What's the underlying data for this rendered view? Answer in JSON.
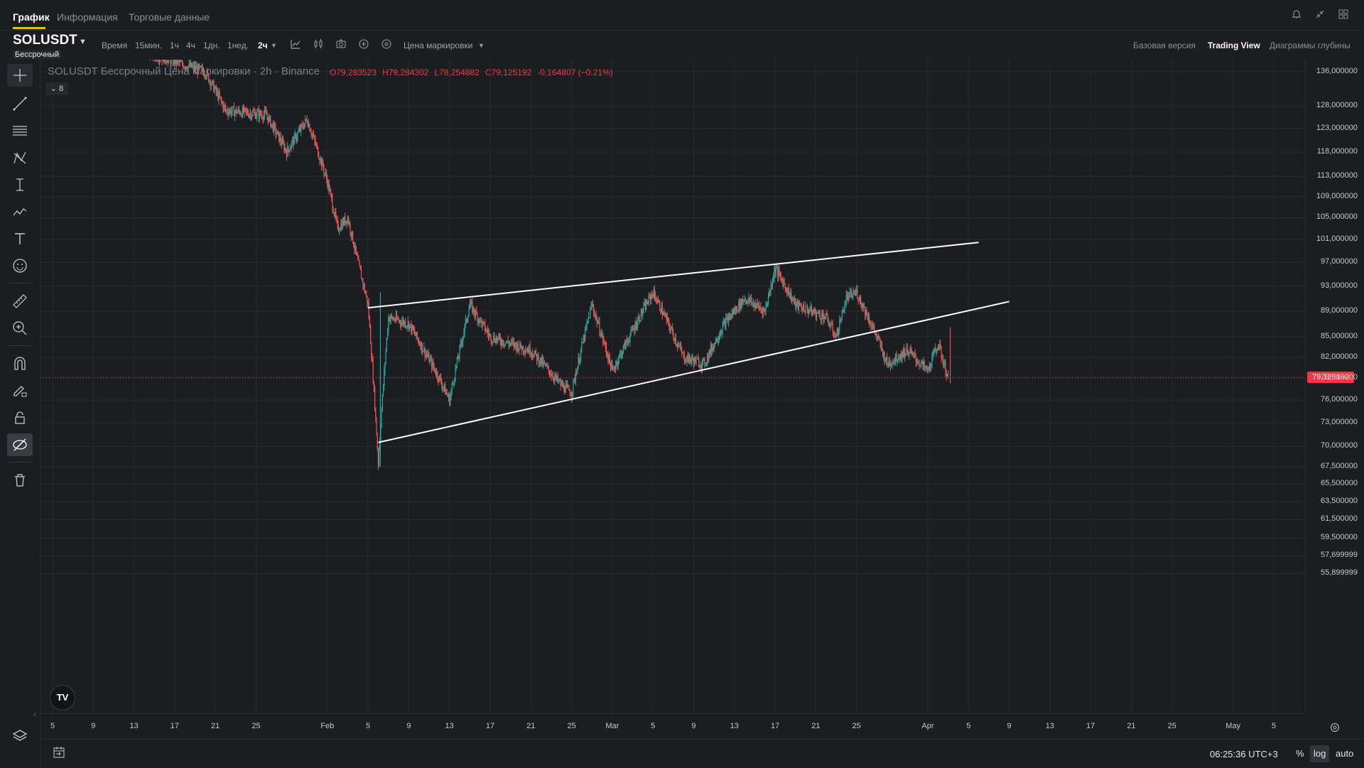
{
  "tabs": [
    {
      "label": "График",
      "active": true
    },
    {
      "label": "Информация",
      "active": false
    },
    {
      "label": "Торговые данные",
      "active": false
    }
  ],
  "top_right_icons": [
    "bell-icon",
    "shrink-icon",
    "layout-icon"
  ],
  "symbol": {
    "name": "SOLUSDT",
    "badge": "Бессрочный"
  },
  "intervals": [
    {
      "label": "Время",
      "active": false
    },
    {
      "label": "15мин.",
      "active": false
    },
    {
      "label": "1ч",
      "active": false
    },
    {
      "label": "4ч",
      "active": false
    },
    {
      "label": "1дн.",
      "active": false
    },
    {
      "label": "1нед.",
      "active": false
    },
    {
      "label": "2ч",
      "active": true
    }
  ],
  "toolbar_icons": [
    "indicators-icon",
    "candle-type-icon",
    "camera-icon",
    "plus-circle-icon",
    "settings-circle-icon"
  ],
  "price_source": "Цена маркировки",
  "views": [
    {
      "label": "Базовая версия",
      "active": false
    },
    {
      "label": "Trading View",
      "active": true
    },
    {
      "label": "Диаграммы глубины",
      "active": false
    }
  ],
  "left_tools": [
    "crosshair-icon",
    "trend-line-icon",
    "parallel-lines-icon",
    "pattern-icon",
    "measure-icon",
    "brush-icon",
    "text-icon",
    "emoji-icon",
    "ruler-icon",
    "zoom-in-icon",
    "magnet-icon",
    "lock-pencil-icon",
    "lock-icon",
    "hide-drawings-icon",
    "trash-icon",
    "layers-icon"
  ],
  "legend": {
    "title": "SOLUSDT Бессрочный Цена маркировки · 2h · Binance",
    "open": "O79,283523",
    "high": "H79,284302",
    "low": "L78,254882",
    "close": "C79,125192",
    "change": "-0,164807 (−0.21%)",
    "indicators_count": "8"
  },
  "price_axis": {
    "labels": [
      "136,000000",
      "128,000000",
      "123,000000",
      "118,000000",
      "113,000000",
      "109,000000",
      "105,000000",
      "101,000000",
      "97,000000",
      "93,000000",
      "89,000000",
      "85,000000",
      "82,000000",
      "79,000000",
      "76,000000",
      "73,000000",
      "70,000000",
      "67,500000",
      "65,500000",
      "63,500000",
      "61,500000",
      "59,500000",
      "57,699999",
      "55,899999"
    ],
    "current": "79,125192"
  },
  "time_axis": {
    "labels": [
      "5",
      "9",
      "13",
      "17",
      "21",
      "25",
      "Feb",
      "5",
      "9",
      "13",
      "17",
      "21",
      "25",
      "Mar",
      "5",
      "9",
      "13",
      "17",
      "21",
      "25",
      "Apr",
      "5",
      "9",
      "13",
      "17",
      "21",
      "25",
      "May",
      "5"
    ]
  },
  "bottom": {
    "clock": "06:25:36 UTC+3",
    "percent": "%",
    "log": "log",
    "auto": "auto"
  },
  "colors": {
    "up": "#26a69a",
    "down": "#ef5350",
    "current_price": "#f23645",
    "accent": "#f0b90b"
  },
  "chart_data": {
    "type": "candlestick",
    "symbol": "SOLUSDT",
    "interval": "2h",
    "scale": "log",
    "y_range": [
      55.9,
      140
    ],
    "series_anchors": [
      {
        "x": "Jan 3",
        "price": 150
      },
      {
        "x": "Jan 20",
        "price": 136
      },
      {
        "x": "Jan 22",
        "price": 127
      },
      {
        "x": "Jan 26",
        "price": 126
      },
      {
        "x": "Jan 28",
        "price": 118
      },
      {
        "x": "Jan 30",
        "price": 125
      },
      {
        "x": "Feb 1",
        "price": 112
      },
      {
        "x": "Feb 2",
        "price": 103
      },
      {
        "x": "Feb 3",
        "price": 105
      },
      {
        "x": "Feb 4",
        "price": 97
      },
      {
        "x": "Feb 5",
        "price": 90
      },
      {
        "x": "Feb 6",
        "price": 68
      },
      {
        "x": "Feb 7",
        "price": 88
      },
      {
        "x": "Feb 9",
        "price": 87
      },
      {
        "x": "Feb 12",
        "price": 79
      },
      {
        "x": "Feb 13",
        "price": 76
      },
      {
        "x": "Feb 15",
        "price": 90
      },
      {
        "x": "Feb 17",
        "price": 85
      },
      {
        "x": "Feb 21",
        "price": 83
      },
      {
        "x": "Feb 24",
        "price": 78
      },
      {
        "x": "Feb 25",
        "price": 77
      },
      {
        "x": "Feb 27",
        "price": 90
      },
      {
        "x": "Mar 1",
        "price": 80
      },
      {
        "x": "Mar 3",
        "price": 86
      },
      {
        "x": "Mar 5",
        "price": 92
      },
      {
        "x": "Mar 8",
        "price": 82
      },
      {
        "x": "Mar 10",
        "price": 81
      },
      {
        "x": "Mar 12",
        "price": 87
      },
      {
        "x": "Mar 14",
        "price": 91
      },
      {
        "x": "Mar 16",
        "price": 89
      },
      {
        "x": "Mar 17",
        "price": 96
      },
      {
        "x": "Mar 19",
        "price": 90
      },
      {
        "x": "Mar 22",
        "price": 88
      },
      {
        "x": "Mar 23",
        "price": 85
      },
      {
        "x": "Mar 24",
        "price": 91
      },
      {
        "x": "Mar 25",
        "price": 92
      },
      {
        "x": "Mar 27",
        "price": 85
      },
      {
        "x": "Mar 28",
        "price": 81
      },
      {
        "x": "Mar 30",
        "price": 83
      },
      {
        "x": "Apr 1",
        "price": 80
      },
      {
        "x": "Apr 2",
        "price": 84
      },
      {
        "x": "Apr 3",
        "price": 79
      }
    ],
    "trendlines": [
      {
        "name": "upper",
        "from": {
          "x": "Feb 5",
          "price": 89.5
        },
        "to": {
          "x": "Apr 6",
          "price": 100.5
        }
      },
      {
        "name": "lower",
        "from": {
          "x": "Feb 6",
          "price": 70.5
        },
        "to": {
          "x": "Apr 9",
          "price": 90.5
        }
      }
    ],
    "current_price": 79.125192
  }
}
